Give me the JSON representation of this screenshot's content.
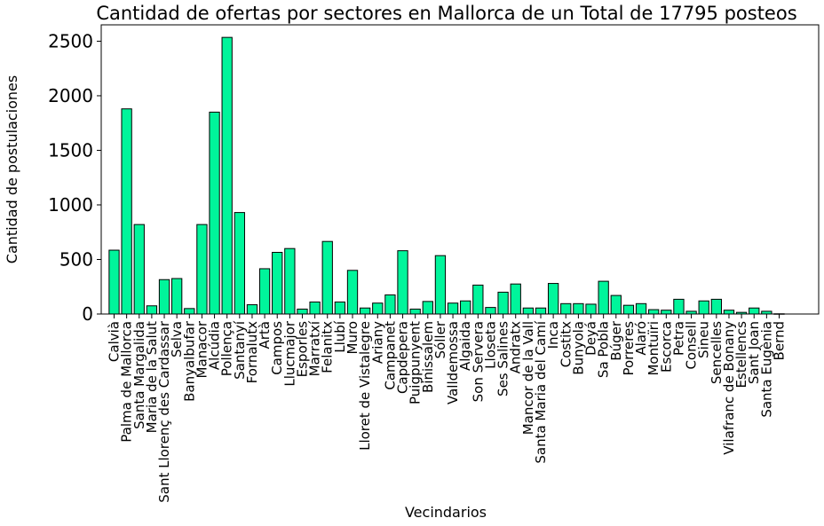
{
  "chart_data": {
    "type": "bar",
    "title": "Cantidad de ofertas por sectores en Mallorca de un Total de 17795 posteos",
    "xlabel": "Vecindarios",
    "ylabel": "Cantidad de postulaciones",
    "ylim": [
      0,
      2650
    ],
    "yticks": [
      0,
      500,
      1000,
      1500,
      2000,
      2500
    ],
    "ytick_labels": [
      "0",
      "500",
      "1000",
      "1500",
      "2000",
      "2500"
    ],
    "grid": false,
    "bar_color": "#00f59b",
    "edge_color": "#000000",
    "categories": [
      "Calvià",
      "Palma de Mallorca",
      "Santa Margalida",
      "Maria de la Salut",
      "Sant Llorenç des Cardassar",
      "Selva",
      "Banyalbufar",
      "Manacor",
      "Alcúdia",
      "Pollença",
      "Santanyí",
      "Fornalutx",
      "Artà",
      "Campos",
      "Llucmajor",
      "Esporles",
      "Marratxí",
      "Felanitx",
      "Llubí",
      "Muro",
      "Lloret de Vistalegre",
      "Ariany",
      "Campanet",
      "Capdepera",
      "Puigpunyent",
      "Binissalem",
      "Sóller",
      "Valldemossa",
      "Algaida",
      "Son Servera",
      "Lloseta",
      "Ses Salines",
      "Andratx",
      "Mancor de la Vall",
      "Santa Maria del Camí",
      "Inca",
      "Costitx",
      "Bunyola",
      "Deyá",
      "Sa Pobla",
      "Búger",
      "Porreres",
      "Alaró",
      "Montuïri",
      "Escorca",
      "Petra",
      "Consell",
      "Sineu",
      "Sencelles",
      "Vilafranc de Bonany",
      "Estellencs",
      "Sant Joan",
      "Santa Eugènia",
      "Bernd"
    ],
    "values": [
      585,
      1880,
      820,
      75,
      315,
      325,
      50,
      820,
      1850,
      2535,
      930,
      85,
      415,
      565,
      600,
      45,
      110,
      665,
      110,
      400,
      55,
      100,
      175,
      580,
      45,
      115,
      535,
      100,
      120,
      265,
      60,
      200,
      275,
      55,
      55,
      280,
      95,
      95,
      90,
      300,
      170,
      80,
      95,
      40,
      35,
      135,
      25,
      120,
      135,
      35,
      15,
      55,
      25,
      2
    ]
  }
}
